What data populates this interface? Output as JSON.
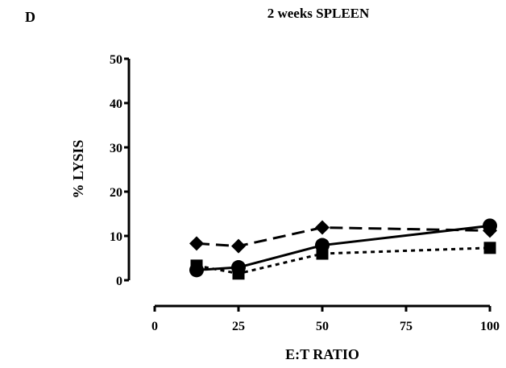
{
  "panel_letter": "D",
  "chart_data": {
    "type": "line",
    "title": "2 weeks SPLEEN",
    "xlabel": "E:T RATIO",
    "ylabel": "% LYSIS",
    "xlim": [
      0,
      100
    ],
    "ylim": [
      0,
      50
    ],
    "xticks": [
      0,
      25,
      50,
      75,
      100
    ],
    "yticks": [
      0,
      10,
      20,
      30,
      40,
      50
    ],
    "grid": false,
    "legend": "none",
    "series": [
      {
        "marker": "diamond",
        "line_style": "dashed",
        "color": "#000000",
        "x": [
          12.5,
          25,
          50,
          100
        ],
        "y": [
          8.3,
          7.7,
          11.9,
          11.2
        ]
      },
      {
        "marker": "circle",
        "line_style": "solid",
        "color": "#000000",
        "x": [
          12.5,
          25,
          50,
          100
        ],
        "y": [
          2.3,
          2.9,
          7.9,
          12.3
        ]
      },
      {
        "marker": "square",
        "line_style": "dotted",
        "color": "#000000",
        "x": [
          12.5,
          25,
          50,
          100
        ],
        "y": [
          3.3,
          1.5,
          6.0,
          7.3
        ]
      }
    ]
  }
}
